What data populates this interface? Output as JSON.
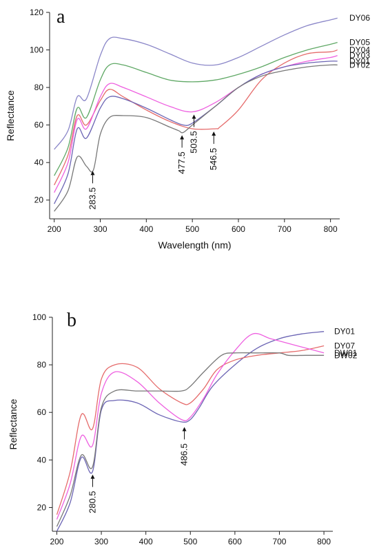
{
  "chart_data": [
    {
      "type": "line",
      "panel_label": "a",
      "xlabel": "Wavelength (nm)",
      "ylabel": "Reflectance",
      "xlim": [
        190,
        820
      ],
      "ylim": [
        10,
        120
      ],
      "x_ticks": [
        200,
        300,
        400,
        500,
        600,
        700,
        800
      ],
      "y_ticks": [
        20,
        40,
        60,
        80,
        100,
        120
      ],
      "legend_position": "right",
      "series": [
        {
          "name": "DY06",
          "color": "#8a86c8",
          "x": [
            200,
            230,
            250,
            270,
            300,
            320,
            350,
            400,
            450,
            500,
            550,
            600,
            650,
            700,
            750,
            800,
            815
          ],
          "y": [
            47,
            57,
            75,
            74,
            97,
            106,
            106,
            103,
            98,
            93,
            92,
            96,
            102,
            108,
            113,
            116,
            117
          ]
        },
        {
          "name": "DY05",
          "color": "#5fa865",
          "x": [
            200,
            230,
            250,
            270,
            300,
            320,
            350,
            400,
            450,
            500,
            550,
            600,
            650,
            700,
            750,
            800,
            815
          ],
          "y": [
            33,
            48,
            69,
            64,
            84,
            92,
            92,
            88,
            84,
            83,
            84,
            87,
            91,
            96,
            100,
            103,
            104
          ]
        },
        {
          "name": "DY04",
          "color": "#e56a6a",
          "x": [
            200,
            230,
            250,
            270,
            300,
            320,
            350,
            400,
            450,
            500,
            550,
            560,
            600,
            650,
            700,
            750,
            800,
            815
          ],
          "y": [
            28,
            44,
            65,
            60,
            73,
            79,
            75,
            68,
            62,
            58,
            58,
            59,
            68,
            84,
            93,
            98,
            99,
            100
          ]
        },
        {
          "name": "DY03",
          "color": "#ee5fe0",
          "x": [
            200,
            230,
            250,
            270,
            300,
            320,
            350,
            400,
            450,
            500,
            550,
            600,
            650,
            700,
            750,
            800,
            815
          ],
          "y": [
            24,
            40,
            63,
            58,
            75,
            82,
            80,
            75,
            70,
            67,
            72,
            80,
            87,
            91,
            94,
            96,
            97
          ]
        },
        {
          "name": "DY01",
          "color": "#6b64b4",
          "x": [
            200,
            230,
            250,
            270,
            300,
            320,
            350,
            400,
            450,
            480,
            500,
            550,
            600,
            650,
            700,
            750,
            800,
            815
          ],
          "y": [
            18,
            34,
            58,
            53,
            69,
            75,
            74,
            69,
            63,
            60,
            61,
            70,
            80,
            87,
            91,
            93,
            94,
            94
          ]
        },
        {
          "name": "DY02",
          "color": "#777777",
          "x": [
            200,
            230,
            250,
            270,
            285,
            300,
            320,
            350,
            400,
            450,
            470,
            480,
            500,
            550,
            600,
            650,
            700,
            750,
            800,
            815
          ],
          "y": [
            14,
            25,
            43,
            38,
            36,
            55,
            64,
            65,
            64,
            59,
            57,
            56,
            60,
            70,
            80,
            86,
            89,
            91,
            92,
            92
          ]
        }
      ],
      "annotations": [
        {
          "text": "283.5",
          "x": 283.5,
          "y": 37
        },
        {
          "text": "477.5",
          "x": 477.5,
          "y": 56
        },
        {
          "text": "503.5",
          "x": 503.5,
          "y": 67
        },
        {
          "text": "546.5",
          "x": 546.5,
          "y": 58
        }
      ]
    },
    {
      "type": "line",
      "panel_label": "b",
      "xlabel": "Wavelength (nm)",
      "ylabel": "Reflectance",
      "xlim": [
        190,
        820
      ],
      "ylim": [
        10,
        100
      ],
      "x_ticks": [
        200,
        300,
        400,
        500,
        600,
        700,
        800
      ],
      "y_ticks": [
        20,
        40,
        60,
        80,
        100
      ],
      "legend_position": "right",
      "series": [
        {
          "name": "DY01",
          "color": "#6b64b4",
          "x": [
            200,
            230,
            255,
            280,
            300,
            330,
            380,
            430,
            480,
            500,
            520,
            550,
            600,
            650,
            700,
            750,
            800
          ],
          "y": [
            10,
            22,
            41,
            35,
            61,
            65,
            64,
            59,
            56,
            57,
            62,
            71,
            80,
            87,
            91,
            93,
            94
          ]
        },
        {
          "name": "DY07",
          "color": "#e56a6a",
          "x": [
            200,
            230,
            255,
            280,
            300,
            330,
            380,
            430,
            480,
            500,
            530,
            560,
            600,
            650,
            700,
            750,
            800
          ],
          "y": [
            17,
            35,
            59,
            53,
            74,
            80,
            79,
            70,
            64,
            64,
            70,
            78,
            82,
            84,
            85,
            86,
            88
          ]
        },
        {
          "name": "DW01",
          "color": "#ee5fe0",
          "x": [
            200,
            230,
            255,
            280,
            300,
            330,
            380,
            430,
            480,
            500,
            530,
            560,
            600,
            640,
            680,
            720,
            760,
            800
          ],
          "y": [
            15,
            30,
            50,
            46,
            68,
            77,
            73,
            64,
            57,
            58,
            66,
            76,
            86,
            93,
            91,
            89,
            87,
            85
          ]
        },
        {
          "name": "DW02",
          "color": "#777777",
          "x": [
            200,
            230,
            255,
            280,
            300,
            330,
            380,
            430,
            480,
            500,
            530,
            570,
            600,
            650,
            700,
            720,
            760,
            800
          ],
          "y": [
            12,
            25,
            42,
            37,
            62,
            69,
            69,
            69,
            69,
            71,
            77,
            84,
            85,
            85,
            85,
            84,
            84,
            84
          ]
        }
      ],
      "annotations": [
        {
          "text": "280.5",
          "x": 280.5,
          "y": 35
        },
        {
          "text": "486.5",
          "x": 486.5,
          "y": 55
        }
      ]
    }
  ]
}
